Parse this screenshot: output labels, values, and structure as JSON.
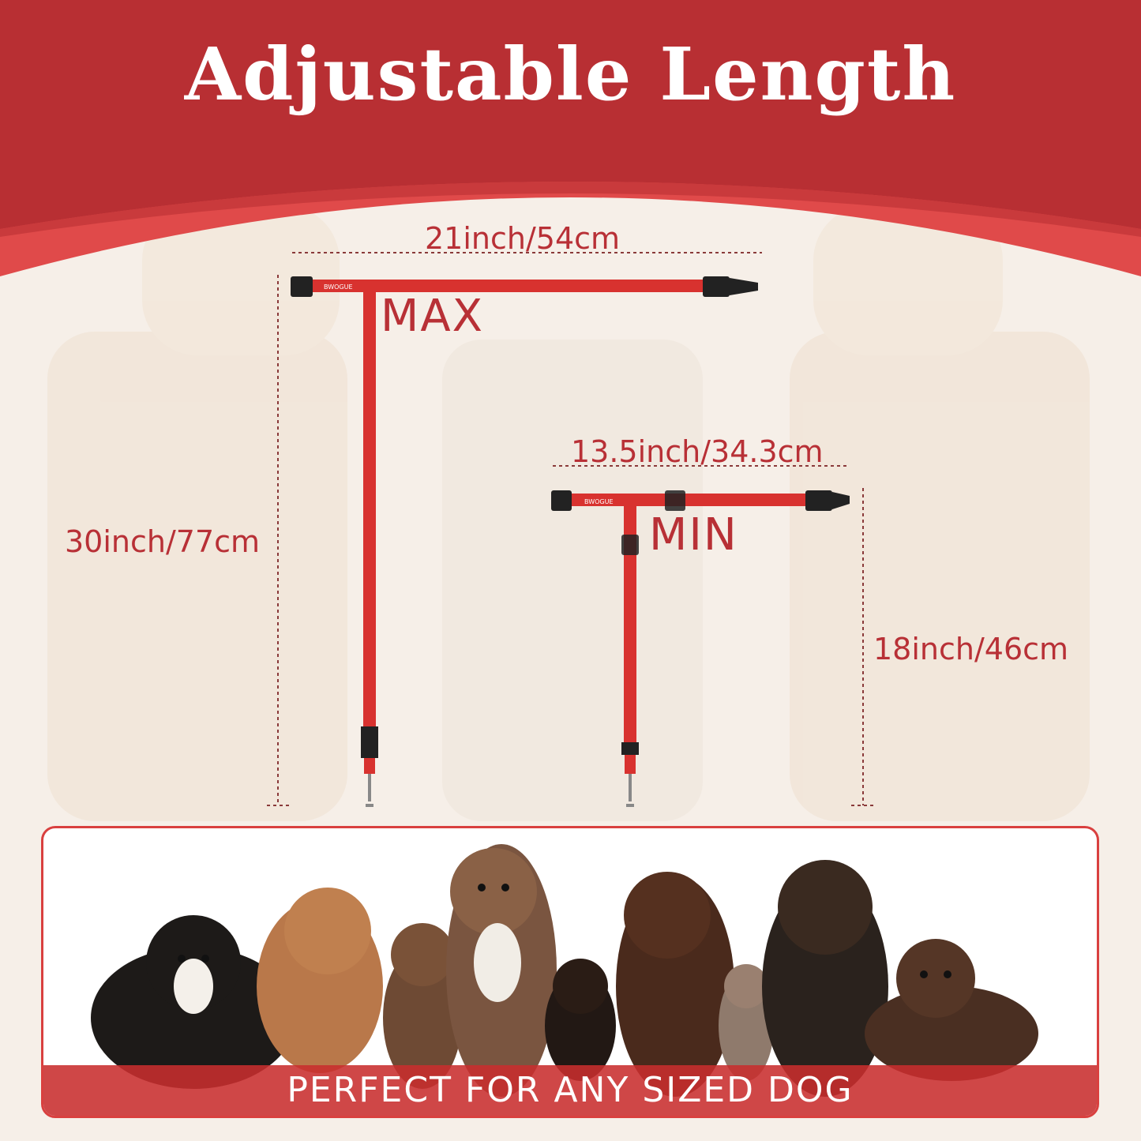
{
  "header": {
    "title": "Adjustable Length"
  },
  "max": {
    "label": "MAX",
    "width": "21inch/54cm",
    "length": "30inch/77cm"
  },
  "min": {
    "label": "MIN",
    "width": "13.5inch/34.3cm",
    "length": "18inch/46cm"
  },
  "brand_on_leash": "BWOGUE",
  "banner": {
    "text": "PERFECT FOR ANY SIZED DOG"
  },
  "colors": {
    "header": "#b82f33",
    "accent": "#e04a4a",
    "strap": "#d8322f",
    "text": "#b83036"
  }
}
